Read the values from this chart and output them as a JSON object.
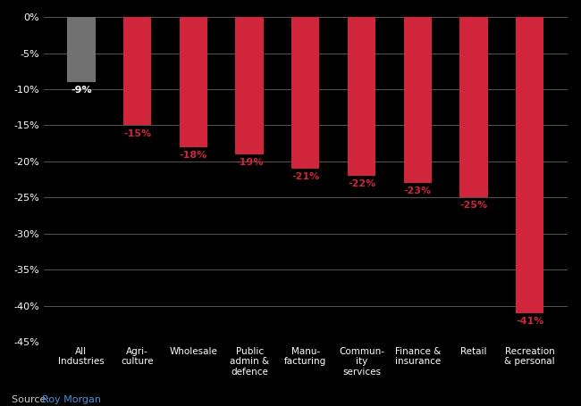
{
  "categories": [
    "All\nIndustries",
    "Agri-\nculture",
    "Wholesale",
    "Public\nadmin &\ndefence",
    "Manu-\nfacturing",
    "Commun-\nity\nservices",
    "Finance &\ninsurance",
    "Retail",
    "Recreation\n& personal"
  ],
  "values": [
    -9,
    -15,
    -18,
    -19,
    -21,
    -22,
    -23,
    -25,
    -41
  ],
  "bar_colors": [
    "#717171",
    "#d0253a",
    "#d0253a",
    "#d0253a",
    "#d0253a",
    "#d0253a",
    "#d0253a",
    "#d0253a",
    "#d0253a"
  ],
  "label_colors": [
    "#ffffff",
    "#d0253a",
    "#d0253a",
    "#d0253a",
    "#d0253a",
    "#d0253a",
    "#d0253a",
    "#d0253a",
    "#d0253a"
  ],
  "bar_labels": [
    "-9%",
    "-15%",
    "-18%",
    "-19%",
    "-21%",
    "-22%",
    "-23%",
    "-25%",
    "-41%"
  ],
  "background_color": "#000000",
  "axes_background_color": "#000000",
  "grid_color": "#555555",
  "tick_color": "#ffffff",
  "ylim": [
    -45,
    0.5
  ],
  "yticks": [
    0,
    -5,
    -10,
    -15,
    -20,
    -25,
    -30,
    -35,
    -40,
    -45
  ],
  "source_text": "Source: ",
  "source_link_text": "Roy Morgan",
  "source_link_color": "#4a90d9",
  "source_text_color": "#cccccc",
  "bar_width": 0.5,
  "label_fontsize": 8,
  "tick_fontsize": 7.5,
  "ytick_fontsize": 8
}
